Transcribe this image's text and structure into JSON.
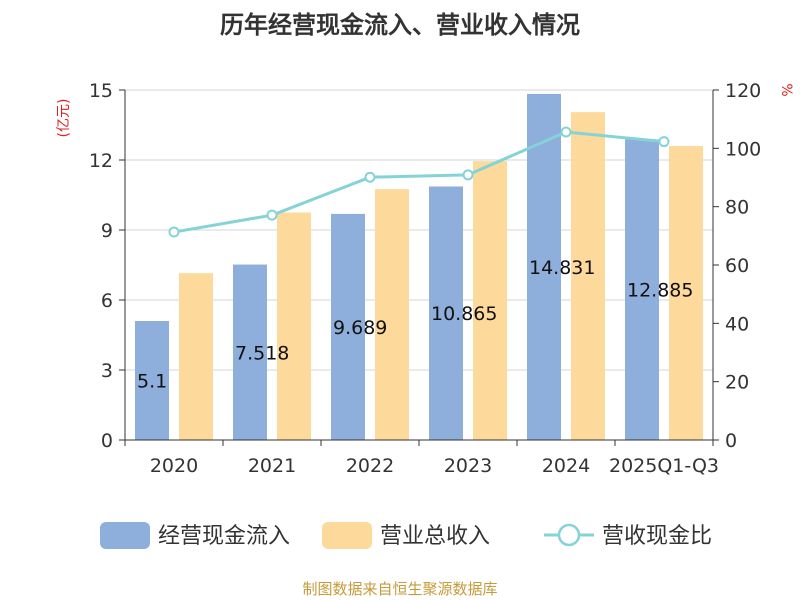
{
  "chart_data": {
    "type": "bar",
    "title": "历年经营现金流入、营业收入情况",
    "left_axis_unit": "(亿元)",
    "right_axis_unit": "%",
    "categories": [
      "2020",
      "2021",
      "2022",
      "2023",
      "2024",
      "2025Q1-Q3"
    ],
    "left_ylim": [
      0,
      15
    ],
    "left_ticks": [
      0,
      3,
      6,
      9,
      12,
      15
    ],
    "right_ylim": [
      0,
      120
    ],
    "right_ticks": [
      0,
      20,
      40,
      60,
      80,
      100,
      120
    ],
    "grid": true,
    "legend_position": "bottom",
    "series": [
      {
        "name": "经营现金流入",
        "kind": "bar",
        "axis": "left",
        "color": "#8eaedb",
        "values": [
          5.1,
          7.518,
          9.689,
          10.865,
          14.831,
          12.885
        ],
        "data_labels": [
          "5.1",
          "7.518",
          "9.689",
          "10.865",
          "14.831",
          "12.885"
        ]
      },
      {
        "name": "营业总收入",
        "kind": "bar",
        "axis": "left",
        "color": "#fdd99b",
        "values": [
          7.15,
          9.75,
          10.75,
          11.95,
          14.05,
          12.6
        ]
      },
      {
        "name": "营收现金比",
        "kind": "line",
        "axis": "right",
        "color": "#84d3d6",
        "values": [
          71.3,
          77.1,
          90.1,
          90.9,
          105.6,
          102.3
        ]
      }
    ]
  },
  "footer": {
    "source": "制图数据来自恒生聚源数据库"
  }
}
